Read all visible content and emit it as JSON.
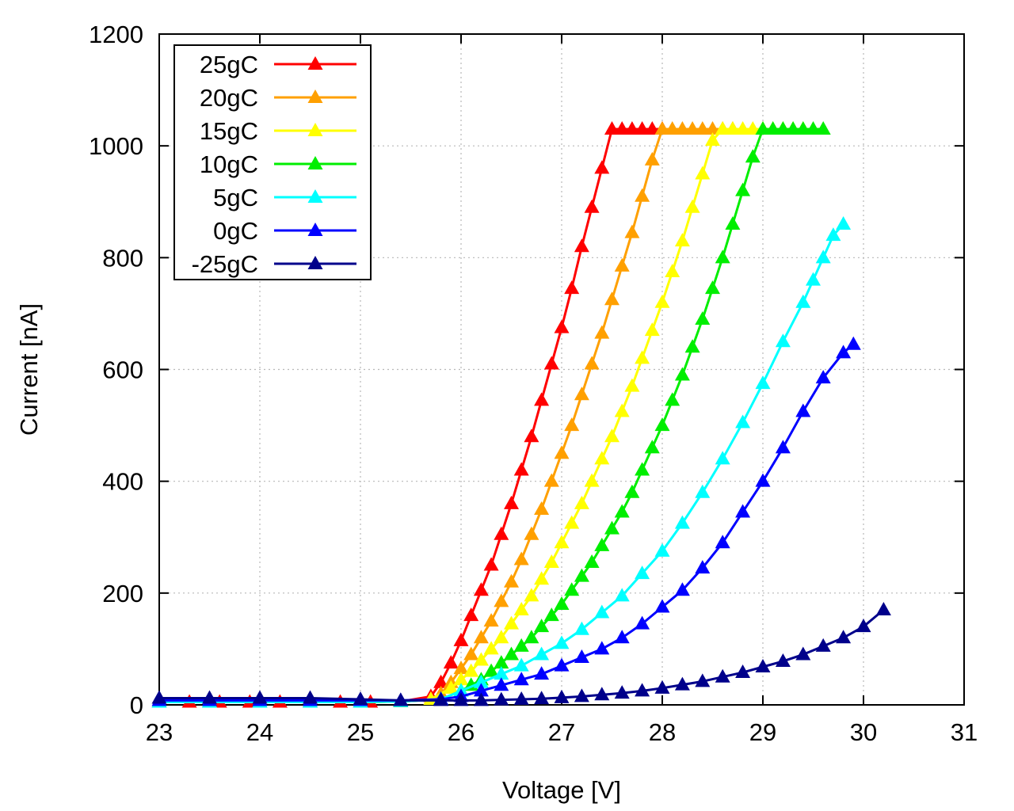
{
  "chart_data": {
    "type": "line",
    "title": "",
    "xlabel": "Voltage [V]",
    "ylabel": "Current [nA]",
    "xlim": [
      23,
      31
    ],
    "ylim": [
      0,
      1200
    ],
    "xticks": [
      23,
      24,
      25,
      26,
      27,
      28,
      29,
      30,
      31
    ],
    "yticks": [
      0,
      200,
      400,
      600,
      800,
      1000,
      1200
    ],
    "x_tick_labels": [
      "23",
      "24",
      "25",
      "26",
      "27",
      "28",
      "29",
      "30",
      "31"
    ],
    "y_tick_labels": [
      "0",
      "200",
      "400",
      "600",
      "800",
      "1000",
      "1200"
    ],
    "grid": true,
    "legend_position": "top-left",
    "marker": "triangle",
    "series": [
      {
        "name": "25gC",
        "color": "#ff0000",
        "x": [
          23.0,
          23.3,
          23.6,
          23.9,
          24.2,
          24.5,
          24.8,
          25.1,
          25.4,
          25.7,
          25.8,
          25.9,
          26.0,
          26.1,
          26.2,
          26.3,
          26.4,
          26.5,
          26.6,
          26.7,
          26.8,
          26.9,
          27.0,
          27.1,
          27.2,
          27.3,
          27.4,
          27.5,
          27.6,
          27.7,
          27.8,
          27.9,
          28.0
        ],
        "y": [
          5,
          5,
          5,
          5,
          5,
          5,
          5,
          5,
          6,
          15,
          40,
          75,
          115,
          160,
          205,
          250,
          305,
          360,
          420,
          480,
          545,
          610,
          675,
          745,
          820,
          890,
          960,
          1030,
          1030,
          1030,
          1030,
          1030,
          1030
        ]
      },
      {
        "name": "20gC",
        "color": "#ffa000",
        "x": [
          23.0,
          23.5,
          24.0,
          24.5,
          25.0,
          25.4,
          25.7,
          25.8,
          25.9,
          26.0,
          26.1,
          26.2,
          26.3,
          26.4,
          26.5,
          26.6,
          26.7,
          26.8,
          26.9,
          27.0,
          27.1,
          27.2,
          27.3,
          27.4,
          27.5,
          27.6,
          27.7,
          27.8,
          27.9,
          28.0,
          28.1,
          28.2,
          28.3,
          28.4,
          28.5,
          28.6,
          28.7
        ],
        "y": [
          5,
          5,
          5,
          5,
          5,
          6,
          10,
          20,
          40,
          65,
          90,
          120,
          150,
          185,
          220,
          260,
          305,
          350,
          400,
          450,
          500,
          555,
          610,
          665,
          725,
          785,
          845,
          910,
          975,
          1030,
          1030,
          1030,
          1030,
          1030,
          1030,
          1030,
          1030
        ]
      },
      {
        "name": "15gC",
        "color": "#ffff00",
        "x": [
          23.0,
          23.5,
          24.0,
          24.5,
          25.0,
          25.4,
          25.7,
          25.9,
          26.0,
          26.1,
          26.2,
          26.3,
          26.4,
          26.5,
          26.6,
          26.7,
          26.8,
          26.9,
          27.0,
          27.1,
          27.2,
          27.3,
          27.4,
          27.5,
          27.6,
          27.7,
          27.8,
          27.9,
          28.0,
          28.1,
          28.2,
          28.3,
          28.4,
          28.5,
          28.6,
          28.7,
          28.8,
          28.9,
          29.0,
          29.1,
          29.2,
          29.3,
          29.4
        ],
        "y": [
          5,
          5,
          5,
          5,
          5,
          6,
          10,
          30,
          45,
          60,
          80,
          100,
          120,
          145,
          170,
          195,
          225,
          255,
          290,
          325,
          360,
          400,
          440,
          480,
          525,
          570,
          620,
          670,
          720,
          775,
          830,
          890,
          950,
          1010,
          1030,
          1030,
          1030,
          1030,
          1030,
          1030,
          1030,
          1030,
          1030
        ]
      },
      {
        "name": "10gC",
        "color": "#00ee00",
        "x": [
          23.0,
          23.5,
          24.0,
          24.5,
          25.0,
          25.4,
          25.8,
          26.0,
          26.1,
          26.2,
          26.3,
          26.4,
          26.5,
          26.6,
          26.7,
          26.8,
          26.9,
          27.0,
          27.1,
          27.2,
          27.3,
          27.4,
          27.5,
          27.6,
          27.7,
          27.8,
          27.9,
          28.0,
          28.1,
          28.2,
          28.3,
          28.4,
          28.5,
          28.6,
          28.7,
          28.8,
          28.9,
          29.0,
          29.1,
          29.2,
          29.3,
          29.4,
          29.5,
          29.6
        ],
        "y": [
          5,
          5,
          5,
          5,
          5,
          6,
          10,
          25,
          35,
          45,
          60,
          75,
          90,
          105,
          120,
          140,
          160,
          180,
          205,
          230,
          255,
          285,
          315,
          345,
          380,
          420,
          460,
          500,
          545,
          590,
          640,
          690,
          745,
          800,
          860,
          920,
          980,
          1030,
          1030,
          1030,
          1030,
          1030,
          1030,
          1030
        ]
      },
      {
        "name": "5gC",
        "color": "#00ffff",
        "x": [
          23.0,
          23.5,
          24.0,
          24.5,
          25.0,
          25.4,
          25.8,
          26.0,
          26.2,
          26.4,
          26.6,
          26.8,
          27.0,
          27.2,
          27.4,
          27.6,
          27.8,
          28.0,
          28.2,
          28.4,
          28.6,
          28.8,
          29.0,
          29.2,
          29.4,
          29.5,
          29.6,
          29.7,
          29.8
        ],
        "y": [
          5,
          5,
          5,
          5,
          5,
          6,
          10,
          25,
          40,
          55,
          70,
          90,
          110,
          135,
          165,
          195,
          235,
          275,
          325,
          380,
          440,
          505,
          575,
          650,
          720,
          760,
          800,
          840,
          860
        ]
      },
      {
        "name": "0gC",
        "color": "#0000ff",
        "x": [
          23.0,
          23.5,
          24.0,
          24.5,
          25.0,
          25.4,
          25.8,
          26.0,
          26.2,
          26.4,
          26.6,
          26.8,
          27.0,
          27.2,
          27.4,
          27.6,
          27.8,
          28.0,
          28.2,
          28.4,
          28.6,
          28.8,
          29.0,
          29.2,
          29.4,
          29.6,
          29.8,
          29.9
        ],
        "y": [
          8,
          8,
          8,
          8,
          8,
          8,
          10,
          15,
          25,
          35,
          45,
          55,
          70,
          85,
          100,
          120,
          145,
          175,
          205,
          245,
          290,
          345,
          400,
          460,
          525,
          585,
          630,
          645
        ]
      },
      {
        "name": "-25gC",
        "color": "#00008b",
        "x": [
          23.0,
          23.5,
          24.0,
          24.5,
          25.0,
          25.4,
          25.8,
          26.0,
          26.2,
          26.4,
          26.6,
          26.8,
          27.0,
          27.2,
          27.4,
          27.6,
          27.8,
          28.0,
          28.2,
          28.4,
          28.6,
          28.8,
          29.0,
          29.2,
          29.4,
          29.6,
          29.8,
          30.0,
          30.2
        ],
        "y": [
          12,
          12,
          12,
          12,
          10,
          8,
          8,
          8,
          8,
          9,
          10,
          11,
          13,
          15,
          18,
          21,
          25,
          30,
          36,
          42,
          50,
          58,
          68,
          78,
          90,
          105,
          120,
          140,
          170
        ]
      }
    ]
  }
}
